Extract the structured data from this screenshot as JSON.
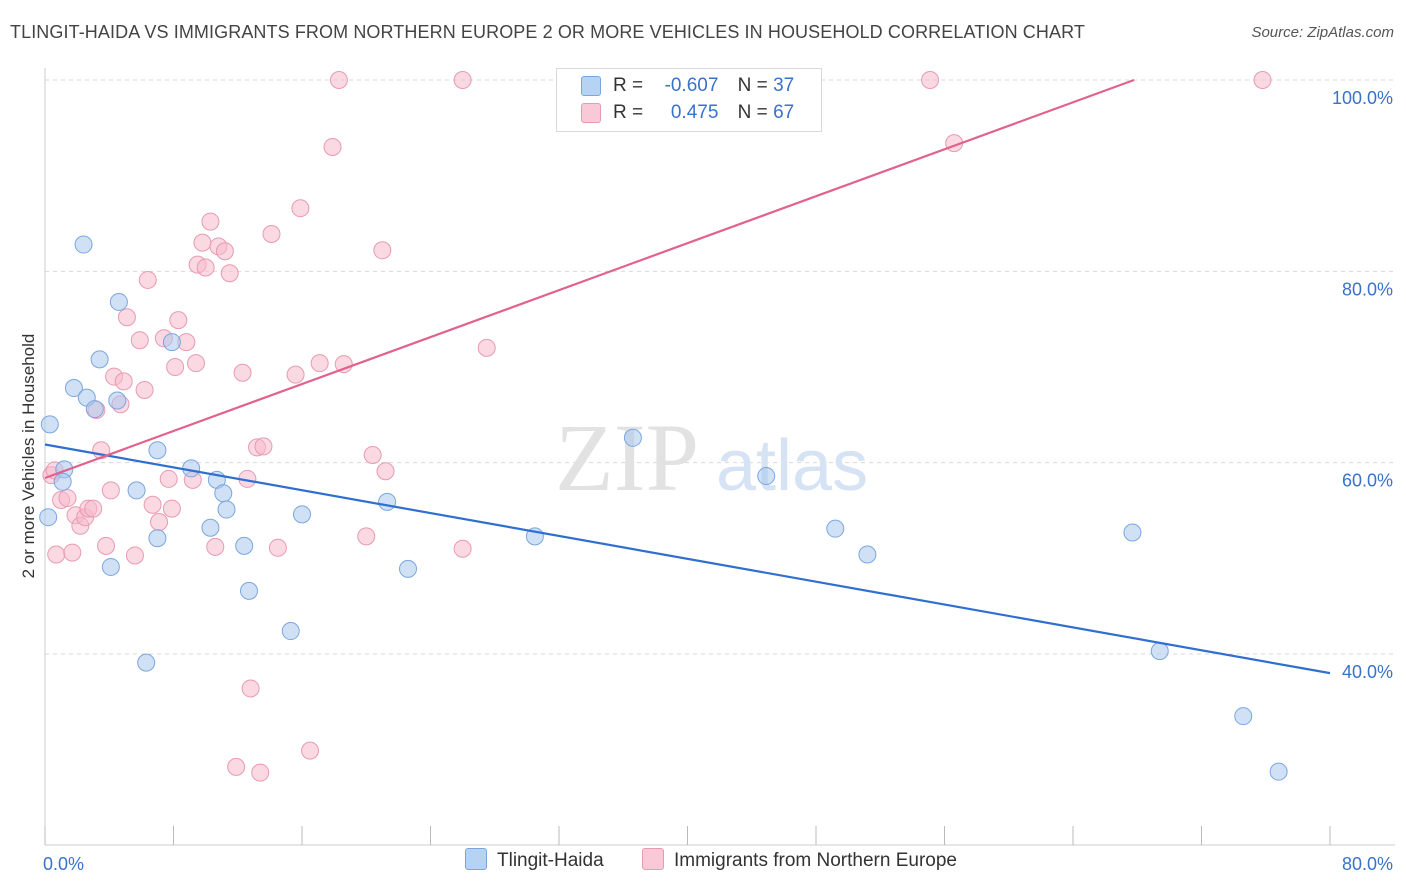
{
  "header": {
    "title": "TLINGIT-HAIDA VS IMMIGRANTS FROM NORTHERN EUROPE 2 OR MORE VEHICLES IN HOUSEHOLD CORRELATION CHART",
    "source": "Source: ZipAtlas.com"
  },
  "watermark": {
    "zip": "ZIP",
    "atlas": "atlas"
  },
  "legend": {
    "rows": [
      {
        "r_label": "R =",
        "r_value": "-0.607",
        "n_label": "N =",
        "n_value": "37"
      },
      {
        "r_label": "R =",
        "r_value": "0.475",
        "n_label": "N =",
        "n_value": "67"
      }
    ]
  },
  "bottom_legend": {
    "items": [
      {
        "label": "Tlingit-Haida"
      },
      {
        "label": "Immigrants from Northern Europe"
      }
    ]
  },
  "colors": {
    "blue_fill": "#a9c8ef",
    "blue_stroke": "#7aa6e0",
    "blue_line": "#2f6fcf",
    "pink_fill": "#f5b9cc",
    "pink_stroke": "#e89ab2",
    "pink_line": "#e0628d",
    "grid": "#d9d9d9",
    "tick_text": "#3a72c9"
  },
  "chart_data": {
    "type": "scatter",
    "title": "TLINGIT-HAIDA VS IMMIGRANTS FROM NORTHERN EUROPE 2 OR MORE VEHICLES IN HOUSEHOLD CORRELATION CHART",
    "xlabel": "",
    "ylabel": "2 or more Vehicles in Household",
    "xlim": [
      0,
      80
    ],
    "ylim": [
      20,
      102
    ],
    "x_tick_labels": [
      "0.0%",
      "80.0%"
    ],
    "y_ticks": [
      40,
      60,
      80,
      100
    ],
    "y_tick_labels": [
      "40.0%",
      "60.0%",
      "80.0%",
      "100.0%"
    ],
    "grid": "horizontal dashed",
    "legend_position": "top-center",
    "series": [
      {
        "name": "Tlingit-Haida",
        "color": "#a9c8ef",
        "trend": {
          "x": [
            0,
            80
          ],
          "y": [
            61.9,
            38.0
          ]
        },
        "points": [
          [
            0.2,
            54.3
          ],
          [
            0.3,
            64.0
          ],
          [
            1.2,
            59.3
          ],
          [
            1.1,
            58.0
          ],
          [
            1.8,
            67.8
          ],
          [
            2.4,
            82.8
          ],
          [
            2.6,
            66.8
          ],
          [
            3.1,
            65.6
          ],
          [
            3.4,
            70.8
          ],
          [
            4.1,
            49.1
          ],
          [
            4.5,
            66.5
          ],
          [
            4.6,
            76.8
          ],
          [
            5.7,
            57.1
          ],
          [
            6.3,
            39.1
          ],
          [
            7.0,
            61.3
          ],
          [
            7.0,
            52.1
          ],
          [
            7.9,
            72.6
          ],
          [
            9.1,
            59.4
          ],
          [
            10.3,
            53.2
          ],
          [
            10.7,
            58.2
          ],
          [
            11.1,
            56.8
          ],
          [
            11.3,
            55.1
          ],
          [
            12.4,
            51.3
          ],
          [
            12.7,
            46.6
          ],
          [
            15.3,
            42.4
          ],
          [
            16.0,
            54.6
          ],
          [
            21.3,
            55.9
          ],
          [
            22.6,
            48.9
          ],
          [
            30.5,
            52.3
          ],
          [
            36.6,
            62.6
          ],
          [
            44.9,
            58.6
          ],
          [
            49.2,
            53.1
          ],
          [
            51.2,
            50.4
          ],
          [
            67.7,
            52.7
          ],
          [
            69.4,
            40.3
          ],
          [
            74.6,
            33.5
          ],
          [
            76.8,
            27.7
          ]
        ]
      },
      {
        "name": "Immigrants from Northern Europe",
        "color": "#f5b9cc",
        "trend": {
          "x": [
            0,
            67.8
          ],
          "y": [
            58.4,
            100.0
          ]
        },
        "points": [
          [
            0.4,
            58.7
          ],
          [
            0.6,
            59.2
          ],
          [
            0.7,
            50.4
          ],
          [
            1.0,
            56.1
          ],
          [
            1.4,
            56.3
          ],
          [
            1.7,
            50.6
          ],
          [
            1.9,
            54.5
          ],
          [
            2.2,
            53.4
          ],
          [
            2.5,
            54.3
          ],
          [
            2.7,
            55.2
          ],
          [
            3.0,
            55.2
          ],
          [
            3.2,
            65.5
          ],
          [
            3.5,
            61.3
          ],
          [
            3.8,
            51.3
          ],
          [
            4.1,
            57.1
          ],
          [
            4.3,
            69.0
          ],
          [
            4.7,
            66.1
          ],
          [
            4.9,
            68.5
          ],
          [
            5.1,
            75.2
          ],
          [
            5.6,
            50.3
          ],
          [
            5.9,
            72.8
          ],
          [
            6.2,
            67.6
          ],
          [
            6.4,
            79.1
          ],
          [
            6.7,
            55.6
          ],
          [
            7.1,
            53.8
          ],
          [
            7.4,
            73.0
          ],
          [
            7.7,
            58.3
          ],
          [
            7.9,
            55.2
          ],
          [
            8.1,
            70.0
          ],
          [
            8.3,
            74.9
          ],
          [
            8.8,
            72.6
          ],
          [
            9.2,
            58.2
          ],
          [
            9.4,
            70.4
          ],
          [
            9.5,
            80.7
          ],
          [
            9.8,
            83.0
          ],
          [
            10.0,
            80.4
          ],
          [
            10.3,
            85.2
          ],
          [
            10.6,
            51.2
          ],
          [
            10.8,
            82.6
          ],
          [
            11.2,
            82.1
          ],
          [
            11.5,
            79.8
          ],
          [
            12.3,
            69.4
          ],
          [
            12.6,
            58.3
          ],
          [
            12.8,
            36.4
          ],
          [
            13.2,
            61.6
          ],
          [
            13.6,
            61.7
          ],
          [
            11.9,
            28.2
          ],
          [
            13.4,
            27.6
          ],
          [
            14.1,
            83.9
          ],
          [
            14.5,
            51.1
          ],
          [
            15.6,
            69.2
          ],
          [
            15.9,
            86.6
          ],
          [
            16.5,
            29.9
          ],
          [
            17.1,
            70.4
          ],
          [
            17.9,
            93.0
          ],
          [
            18.3,
            100.0
          ],
          [
            18.6,
            70.3
          ],
          [
            20.0,
            52.3
          ],
          [
            20.4,
            60.8
          ],
          [
            21.0,
            82.2
          ],
          [
            21.2,
            59.1
          ],
          [
            26.0,
            100.0
          ],
          [
            26.0,
            51.0
          ],
          [
            27.5,
            72.0
          ],
          [
            55.1,
            100.0
          ],
          [
            56.6,
            93.4
          ],
          [
            75.8,
            100.0
          ]
        ]
      }
    ]
  }
}
